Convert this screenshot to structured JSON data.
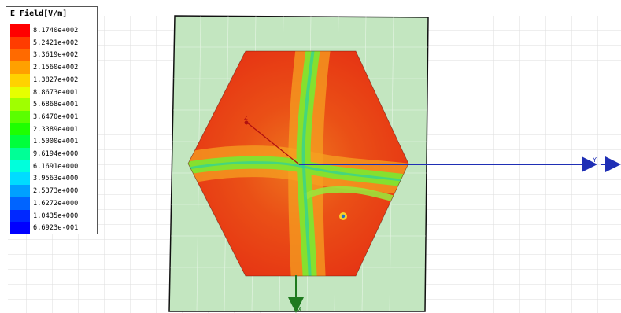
{
  "legend": {
    "title": "E Field[V/m]",
    "entries": [
      {
        "label": "8.1740e+002",
        "color": "#ff0000"
      },
      {
        "label": "5.2421e+002",
        "color": "#ff3c00"
      },
      {
        "label": "3.3619e+002",
        "color": "#ff6a00"
      },
      {
        "label": "2.1560e+002",
        "color": "#ffa000"
      },
      {
        "label": "1.3827e+002",
        "color": "#ffd200"
      },
      {
        "label": "8.8673e+001",
        "color": "#e6ff00"
      },
      {
        "label": "5.6868e+001",
        "color": "#a0ff00"
      },
      {
        "label": "3.6470e+001",
        "color": "#5aff00"
      },
      {
        "label": "2.3389e+001",
        "color": "#1eff00"
      },
      {
        "label": "1.5000e+001",
        "color": "#00ff3c"
      },
      {
        "label": "9.6194e+000",
        "color": "#00ff96"
      },
      {
        "label": "6.1691e+000",
        "color": "#00ffdc"
      },
      {
        "label": "3.9563e+000",
        "color": "#00dcff"
      },
      {
        "label": "2.5373e+000",
        "color": "#00a0ff"
      },
      {
        "label": "1.6272e+000",
        "color": "#0064ff"
      },
      {
        "label": "1.0435e+000",
        "color": "#0028ff"
      },
      {
        "label": "6.6923e-001",
        "color": "#0000ff"
      }
    ]
  },
  "axes": {
    "y_label": "Y",
    "x_label": "X",
    "z_label": "Z",
    "y_color": "#1f2fb5",
    "x_color": "#1e7a1e",
    "z_color": "#b01010"
  },
  "colors": {
    "substrate": "#c3e6c0",
    "hot": "#e62d14",
    "warm": "#f06b10",
    "ridge": "#7adf2a",
    "core": "#2ad1a0"
  }
}
